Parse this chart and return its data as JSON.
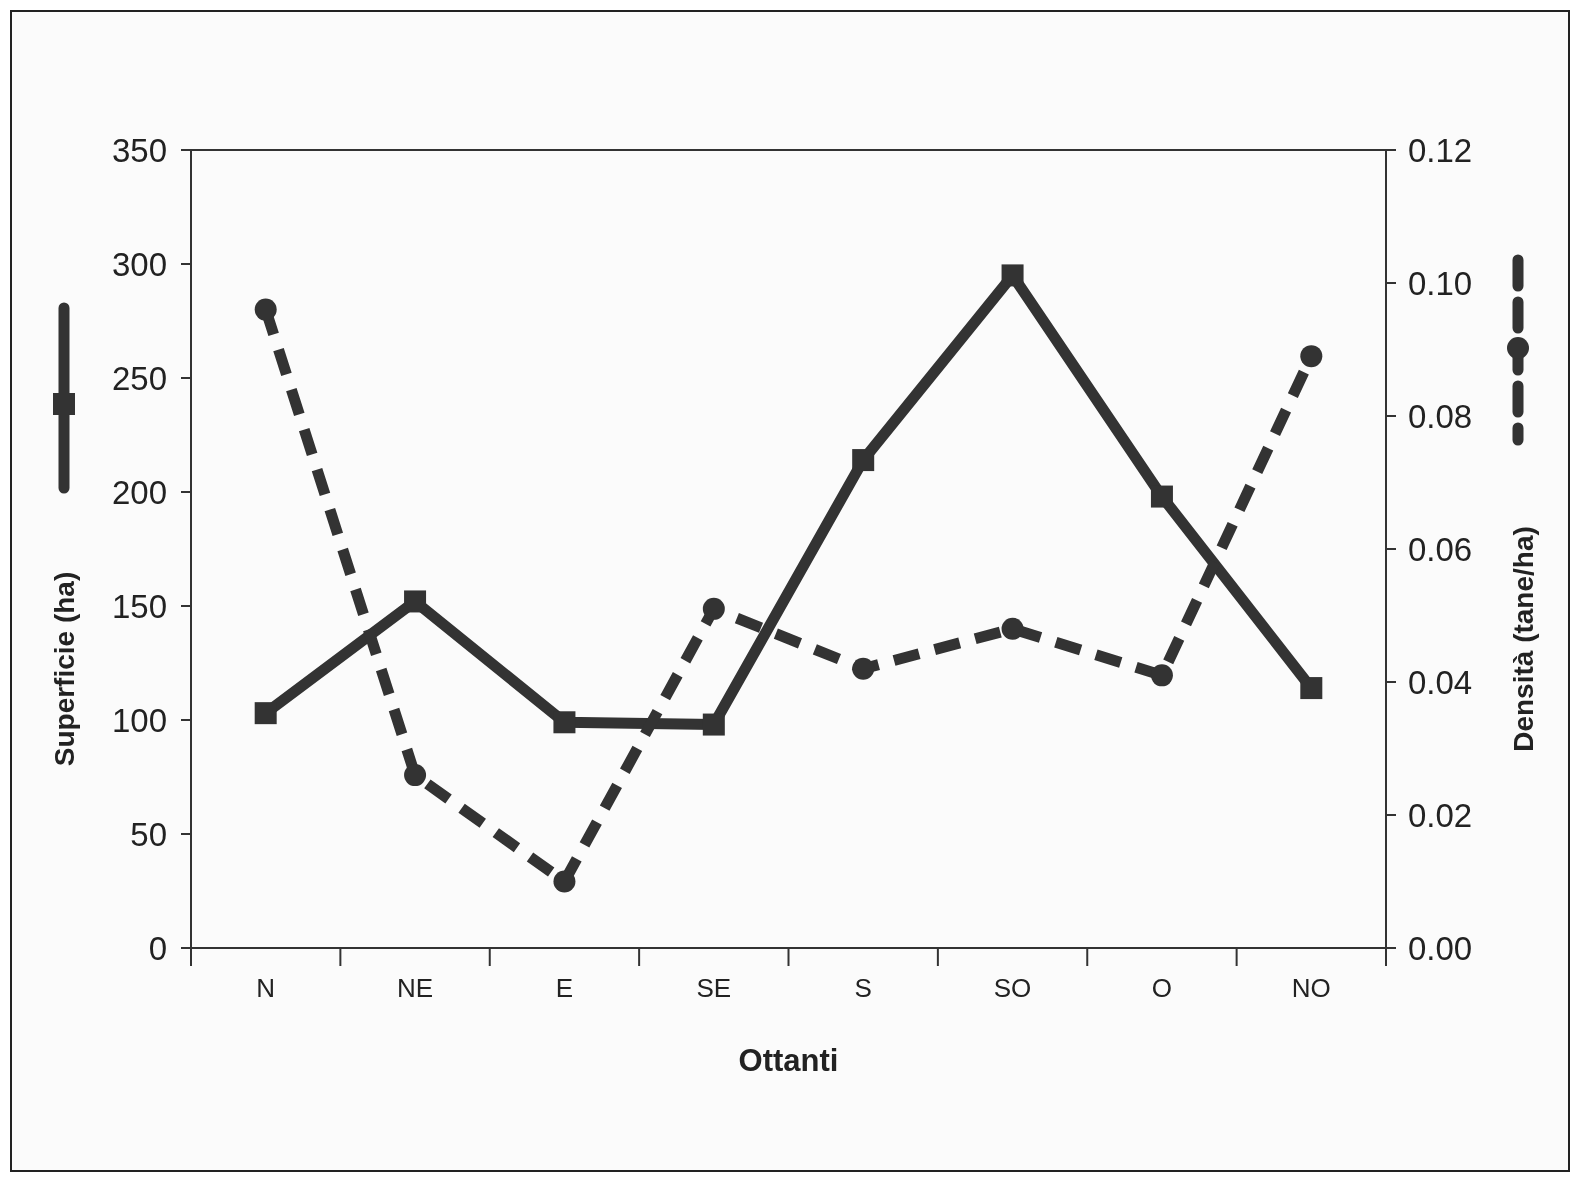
{
  "chart_data": {
    "type": "line",
    "xlabel": "Ottanti",
    "ylabel": "Superficie (ha)",
    "y2label": "Densità (tane/ha)",
    "categories": [
      "N",
      "NE",
      "E",
      "SE",
      "S",
      "SO",
      "O",
      "NO"
    ],
    "series": [
      {
        "color": "#333333",
        "marker": "square",
        "line_style": "solid",
        "values": [
          103,
          152,
          99,
          98,
          214,
          295,
          198,
          114
        ]
      },
      {
        "color": "#333333",
        "marker": "circle",
        "line_style": "dashed",
        "axis": "y2",
        "values": [
          0.096,
          0.026,
          0.01,
          0.051,
          0.042,
          0.048,
          0.041,
          0.089
        ]
      }
    ],
    "ylim": [
      0,
      350
    ],
    "yticks": [
      0,
      50,
      100,
      150,
      200,
      250,
      300,
      350
    ],
    "y2lim": [
      0,
      0.12
    ],
    "y2ticks": [
      {
        "value": 0,
        "label": "0.00"
      },
      {
        "value": 0.02,
        "label": "0.02"
      },
      {
        "value": 0.04,
        "label": "0.04"
      },
      {
        "value": 0.06,
        "label": "0.06"
      },
      {
        "value": 0.08,
        "label": "0.08"
      },
      {
        "value": 0.1,
        "label": "0.10"
      },
      {
        "value": 0.12,
        "label": "0.12"
      }
    ],
    "grid": false
  }
}
